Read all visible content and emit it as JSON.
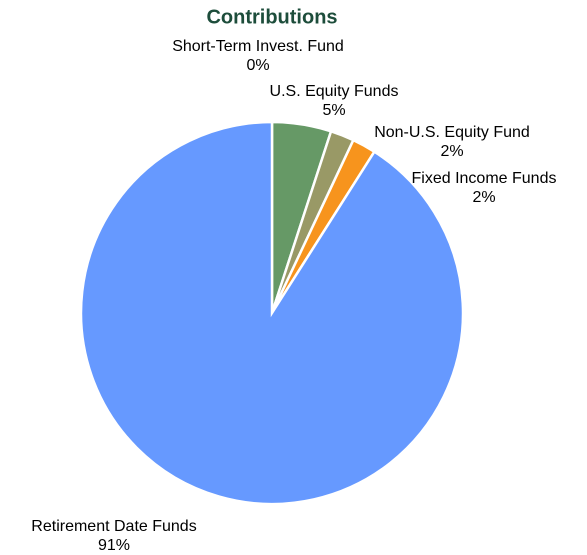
{
  "chart_data": {
    "type": "pie",
    "title": "Contributions",
    "categories": [
      "Short-Term Invest. Fund",
      "U.S. Equity Funds",
      "Non-U.S. Equity Fund",
      "Fixed Income Funds",
      "Retirement Date Funds"
    ],
    "values": [
      0,
      5,
      2,
      2,
      91
    ],
    "value_labels": [
      "0%",
      "5%",
      "2%",
      "2%",
      "91%"
    ],
    "colors": [
      "#b0b0b0",
      "#669966",
      "#999966",
      "#f7941d",
      "#6699ff"
    ]
  }
}
